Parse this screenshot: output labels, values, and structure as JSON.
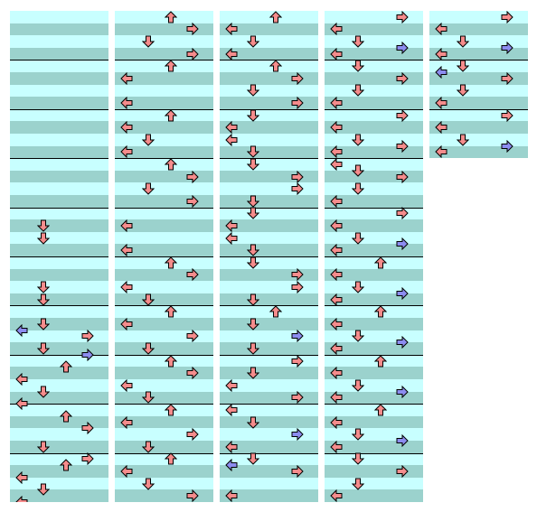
{
  "colors": {
    "stripe_light": "#c8ffff",
    "stripe_dark": "#9bd2cd",
    "measure_line": "#000000",
    "note_red": "#f58c8c",
    "note_blue": "#8c8cf0",
    "note_outline": "#000000"
  },
  "chart": {
    "measures_per_column": 10,
    "lanes": [
      "left",
      "down",
      "up",
      "right"
    ],
    "columns": [
      {
        "measures": 10,
        "notes": [
          {
            "beat": 17,
            "lane": "down",
            "color": "red"
          },
          {
            "beat": 18,
            "lane": "down",
            "color": "red"
          },
          {
            "beat": 22,
            "lane": "down",
            "color": "red"
          },
          {
            "beat": 23,
            "lane": "down",
            "color": "red"
          },
          {
            "beat": 25,
            "lane": "down",
            "color": "red"
          },
          {
            "beat": 25.5,
            "lane": "left",
            "color": "blue"
          },
          {
            "beat": 26,
            "lane": "right",
            "color": "red"
          },
          {
            "beat": 27,
            "lane": "down",
            "color": "red"
          },
          {
            "beat": 27.5,
            "lane": "right",
            "color": "blue"
          },
          {
            "beat": 28.5,
            "lane": "up",
            "color": "red"
          },
          {
            "beat": 29.5,
            "lane": "left",
            "color": "red"
          },
          {
            "beat": 30.5,
            "lane": "down",
            "color": "red"
          },
          {
            "beat": 31.5,
            "lane": "left",
            "color": "red"
          },
          {
            "beat": 32.5,
            "lane": "up",
            "color": "red"
          },
          {
            "beat": 33.5,
            "lane": "right",
            "color": "red"
          },
          {
            "beat": 35,
            "lane": "down",
            "color": "red"
          },
          {
            "beat": 36,
            "lane": "right",
            "color": "red"
          },
          {
            "beat": 36.5,
            "lane": "up",
            "color": "red"
          },
          {
            "beat": 37.5,
            "lane": "left",
            "color": "red"
          },
          {
            "beat": 38.5,
            "lane": "down",
            "color": "red"
          },
          {
            "beat": 39.5,
            "lane": "left",
            "color": "red"
          }
        ]
      },
      {
        "measures": 10,
        "notes": [
          {
            "beat": 0,
            "lane": "up",
            "color": "red"
          },
          {
            "beat": 1,
            "lane": "right",
            "color": "red"
          },
          {
            "beat": 2,
            "lane": "down",
            "color": "red"
          },
          {
            "beat": 3,
            "lane": "right",
            "color": "red"
          },
          {
            "beat": 4,
            "lane": "up",
            "color": "red"
          },
          {
            "beat": 5,
            "lane": "left",
            "color": "red"
          },
          {
            "beat": 7,
            "lane": "left",
            "color": "red"
          },
          {
            "beat": 8,
            "lane": "up",
            "color": "red"
          },
          {
            "beat": 9,
            "lane": "left",
            "color": "red"
          },
          {
            "beat": 10,
            "lane": "down",
            "color": "red"
          },
          {
            "beat": 11,
            "lane": "left",
            "color": "red"
          },
          {
            "beat": 12,
            "lane": "up",
            "color": "red"
          },
          {
            "beat": 13,
            "lane": "right",
            "color": "red"
          },
          {
            "beat": 14,
            "lane": "down",
            "color": "red"
          },
          {
            "beat": 15,
            "lane": "right",
            "color": "red"
          },
          {
            "beat": 17,
            "lane": "left",
            "color": "red"
          },
          {
            "beat": 19,
            "lane": "left",
            "color": "red"
          },
          {
            "beat": 20,
            "lane": "up",
            "color": "red"
          },
          {
            "beat": 21,
            "lane": "right",
            "color": "red"
          },
          {
            "beat": 22,
            "lane": "left",
            "color": "red"
          },
          {
            "beat": 23,
            "lane": "down",
            "color": "red"
          },
          {
            "beat": 24,
            "lane": "up",
            "color": "red"
          },
          {
            "beat": 25,
            "lane": "left",
            "color": "red"
          },
          {
            "beat": 26,
            "lane": "right",
            "color": "red"
          },
          {
            "beat": 27,
            "lane": "down",
            "color": "red"
          },
          {
            "beat": 28,
            "lane": "up",
            "color": "red"
          },
          {
            "beat": 29,
            "lane": "right",
            "color": "red"
          },
          {
            "beat": 30,
            "lane": "left",
            "color": "red"
          },
          {
            "beat": 31,
            "lane": "down",
            "color": "red"
          },
          {
            "beat": 32,
            "lane": "up",
            "color": "red"
          },
          {
            "beat": 33,
            "lane": "left",
            "color": "red"
          },
          {
            "beat": 34,
            "lane": "right",
            "color": "red"
          },
          {
            "beat": 35,
            "lane": "down",
            "color": "red"
          },
          {
            "beat": 36,
            "lane": "up",
            "color": "red"
          },
          {
            "beat": 37,
            "lane": "left",
            "color": "red"
          },
          {
            "beat": 38,
            "lane": "down",
            "color": "red"
          },
          {
            "beat": 39,
            "lane": "right",
            "color": "red"
          }
        ]
      },
      {
        "measures": 10,
        "notes": [
          {
            "beat": 0,
            "lane": "up",
            "color": "red"
          },
          {
            "beat": 1,
            "lane": "left",
            "color": "red"
          },
          {
            "beat": 2,
            "lane": "down",
            "color": "red"
          },
          {
            "beat": 3,
            "lane": "left",
            "color": "red"
          },
          {
            "beat": 4,
            "lane": "up",
            "color": "red"
          },
          {
            "beat": 5,
            "lane": "right",
            "color": "red"
          },
          {
            "beat": 6,
            "lane": "down",
            "color": "red"
          },
          {
            "beat": 7,
            "lane": "right",
            "color": "red"
          },
          {
            "beat": 8,
            "lane": "down",
            "color": "red"
          },
          {
            "beat": 9,
            "lane": "left",
            "color": "red"
          },
          {
            "beat": 10,
            "lane": "left",
            "color": "red"
          },
          {
            "beat": 11,
            "lane": "down",
            "color": "red"
          },
          {
            "beat": 12,
            "lane": "down",
            "color": "red"
          },
          {
            "beat": 13,
            "lane": "right",
            "color": "red"
          },
          {
            "beat": 14,
            "lane": "right",
            "color": "red"
          },
          {
            "beat": 15,
            "lane": "down",
            "color": "red"
          },
          {
            "beat": 16,
            "lane": "down",
            "color": "red"
          },
          {
            "beat": 17,
            "lane": "left",
            "color": "red"
          },
          {
            "beat": 18,
            "lane": "left",
            "color": "red"
          },
          {
            "beat": 19,
            "lane": "down",
            "color": "red"
          },
          {
            "beat": 20,
            "lane": "down",
            "color": "red"
          },
          {
            "beat": 21,
            "lane": "right",
            "color": "red"
          },
          {
            "beat": 22,
            "lane": "right",
            "color": "red"
          },
          {
            "beat": 23,
            "lane": "down",
            "color": "red"
          },
          {
            "beat": 24,
            "lane": "up",
            "color": "red"
          },
          {
            "beat": 25,
            "lane": "down",
            "color": "red"
          },
          {
            "beat": 26,
            "lane": "right",
            "color": "blue"
          },
          {
            "beat": 27,
            "lane": "down",
            "color": "red"
          },
          {
            "beat": 28,
            "lane": "right",
            "color": "red"
          },
          {
            "beat": 29,
            "lane": "down",
            "color": "red"
          },
          {
            "beat": 30,
            "lane": "left",
            "color": "red"
          },
          {
            "beat": 31,
            "lane": "right",
            "color": "red"
          },
          {
            "beat": 32,
            "lane": "left",
            "color": "red"
          },
          {
            "beat": 33,
            "lane": "down",
            "color": "red"
          },
          {
            "beat": 34,
            "lane": "right",
            "color": "blue"
          },
          {
            "beat": 35,
            "lane": "left",
            "color": "red"
          },
          {
            "beat": 36,
            "lane": "down",
            "color": "red"
          },
          {
            "beat": 36.5,
            "lane": "left",
            "color": "blue"
          },
          {
            "beat": 37,
            "lane": "right",
            "color": "red"
          },
          {
            "beat": 39,
            "lane": "left",
            "color": "red"
          }
        ]
      },
      {
        "measures": 10,
        "notes": [
          {
            "beat": 0,
            "lane": "right",
            "color": "red"
          },
          {
            "beat": 1,
            "lane": "left",
            "color": "red"
          },
          {
            "beat": 2,
            "lane": "down",
            "color": "red"
          },
          {
            "beat": 2.5,
            "lane": "right",
            "color": "blue"
          },
          {
            "beat": 3,
            "lane": "left",
            "color": "red"
          },
          {
            "beat": 4,
            "lane": "down",
            "color": "red"
          },
          {
            "beat": 5,
            "lane": "right",
            "color": "red"
          },
          {
            "beat": 6,
            "lane": "down",
            "color": "red"
          },
          {
            "beat": 7,
            "lane": "left",
            "color": "red"
          },
          {
            "beat": 8,
            "lane": "right",
            "color": "red"
          },
          {
            "beat": 9,
            "lane": "left",
            "color": "red"
          },
          {
            "beat": 10,
            "lane": "down",
            "color": "red"
          },
          {
            "beat": 10.5,
            "lane": "right",
            "color": "red"
          },
          {
            "beat": 11,
            "lane": "left",
            "color": "red"
          },
          {
            "beat": 12,
            "lane": "left",
            "color": "red"
          },
          {
            "beat": 12.5,
            "lane": "down",
            "color": "red"
          },
          {
            "beat": 13,
            "lane": "right",
            "color": "red"
          },
          {
            "beat": 14,
            "lane": "down",
            "color": "red"
          },
          {
            "beat": 15,
            "lane": "left",
            "color": "red"
          },
          {
            "beat": 16,
            "lane": "right",
            "color": "red"
          },
          {
            "beat": 17,
            "lane": "left",
            "color": "red"
          },
          {
            "beat": 18,
            "lane": "down",
            "color": "red"
          },
          {
            "beat": 18.5,
            "lane": "right",
            "color": "blue"
          },
          {
            "beat": 19,
            "lane": "left",
            "color": "red"
          },
          {
            "beat": 20,
            "lane": "up",
            "color": "red"
          },
          {
            "beat": 21,
            "lane": "left",
            "color": "red"
          },
          {
            "beat": 22,
            "lane": "down",
            "color": "red"
          },
          {
            "beat": 22.5,
            "lane": "right",
            "color": "blue"
          },
          {
            "beat": 23,
            "lane": "left",
            "color": "red"
          },
          {
            "beat": 24,
            "lane": "up",
            "color": "red"
          },
          {
            "beat": 25,
            "lane": "left",
            "color": "red"
          },
          {
            "beat": 26,
            "lane": "down",
            "color": "red"
          },
          {
            "beat": 26.5,
            "lane": "right",
            "color": "blue"
          },
          {
            "beat": 27,
            "lane": "left",
            "color": "red"
          },
          {
            "beat": 28,
            "lane": "up",
            "color": "red"
          },
          {
            "beat": 29,
            "lane": "left",
            "color": "red"
          },
          {
            "beat": 30,
            "lane": "down",
            "color": "red"
          },
          {
            "beat": 30.5,
            "lane": "right",
            "color": "blue"
          },
          {
            "beat": 31,
            "lane": "left",
            "color": "red"
          },
          {
            "beat": 32,
            "lane": "up",
            "color": "red"
          },
          {
            "beat": 33,
            "lane": "left",
            "color": "red"
          },
          {
            "beat": 34,
            "lane": "down",
            "color": "red"
          },
          {
            "beat": 34.5,
            "lane": "right",
            "color": "blue"
          },
          {
            "beat": 35,
            "lane": "left",
            "color": "red"
          },
          {
            "beat": 36,
            "lane": "down",
            "color": "red"
          },
          {
            "beat": 37,
            "lane": "right",
            "color": "red"
          },
          {
            "beat": 38,
            "lane": "down",
            "color": "red"
          },
          {
            "beat": 39,
            "lane": "left",
            "color": "red"
          }
        ]
      },
      {
        "measures": 3,
        "notes": [
          {
            "beat": 0,
            "lane": "right",
            "color": "red"
          },
          {
            "beat": 1,
            "lane": "left",
            "color": "red"
          },
          {
            "beat": 2,
            "lane": "down",
            "color": "red"
          },
          {
            "beat": 2.5,
            "lane": "right",
            "color": "blue"
          },
          {
            "beat": 3,
            "lane": "left",
            "color": "red"
          },
          {
            "beat": 4,
            "lane": "down",
            "color": "red"
          },
          {
            "beat": 4.5,
            "lane": "left",
            "color": "blue"
          },
          {
            "beat": 5,
            "lane": "right",
            "color": "red"
          },
          {
            "beat": 6,
            "lane": "down",
            "color": "red"
          },
          {
            "beat": 7,
            "lane": "left",
            "color": "red"
          },
          {
            "beat": 8,
            "lane": "right",
            "color": "red"
          },
          {
            "beat": 9,
            "lane": "left",
            "color": "red"
          },
          {
            "beat": 10,
            "lane": "down",
            "color": "red"
          },
          {
            "beat": 10.5,
            "lane": "right",
            "color": "blue"
          },
          {
            "beat": 11,
            "lane": "left",
            "color": "red"
          }
        ]
      }
    ]
  }
}
